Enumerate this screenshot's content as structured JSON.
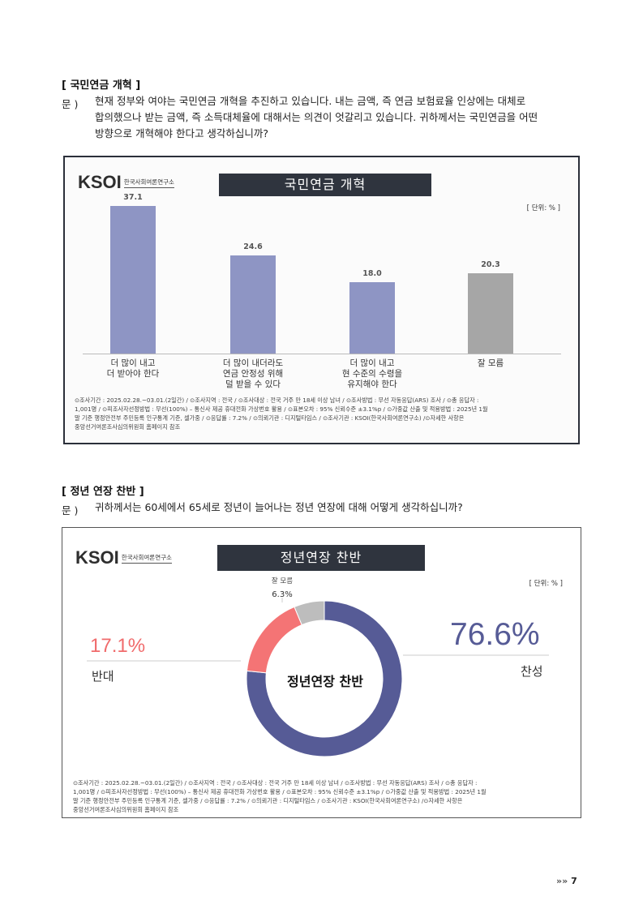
{
  "section1": {
    "title": "[ 국민연금 개혁 ]",
    "q_label": "문 )",
    "q_line1": "현재 정부와 여야는 국민연금 개혁을 추진하고 있습니다. 내는 금액, 즉 연금 보험료율 인상에는 대체로",
    "q_line2": "합의했으나 받는 금액, 즉 소득대체율에 대해서는 의견이 엇갈리고 있습니다. 귀하께서는 국민연금을 어떤",
    "q_line3": "방향으로 개혁해야 한다고 생각하십니까?"
  },
  "section2": {
    "title": "[ 정년 연장 찬반 ]",
    "q_label": "문 )",
    "q_line1": "귀하께서는 60세에서 65세로 정년이 늘어나는 정년 연장에 대해 어떻게 생각하십니까?"
  },
  "logo": {
    "mark": "KSOI",
    "sub": "한국사회여론연구소"
  },
  "chart_data": [
    {
      "type": "bar",
      "title": "국민연금 개혁",
      "unit": "[ 단위: % ]",
      "categories": [
        "더 많이 내고\n더 받아야 한다",
        "더 많이 내더라도\n연금 안정성 위해\n덜 받을 수 있다",
        "더 많이 내고\n현 수준의 수령을\n유지해야 한다",
        "잘 모름"
      ],
      "values": [
        37.1,
        24.6,
        18.0,
        20.3
      ],
      "value_labels": [
        "37.1",
        "24.6",
        "18.0",
        "20.3"
      ],
      "colors": [
        "#8e95c4",
        "#8e95c4",
        "#8e95c4",
        "#a6a6a6"
      ],
      "ylim": [
        0,
        40
      ]
    },
    {
      "type": "pie",
      "title": "정년연장 찬반",
      "unit": "[ 단위: % ]",
      "center_label": "정년연장 찬반",
      "slices": [
        {
          "label": "찬성",
          "value": 76.6,
          "value_label": "76.6%",
          "color": "#565b96"
        },
        {
          "label": "반대",
          "value": 17.1,
          "value_label": "17.1%",
          "color": "#f47475"
        },
        {
          "label": "잘 모름",
          "value": 6.3,
          "value_label": "6.3%",
          "color": "#bdbdbd"
        }
      ]
    }
  ],
  "footnote": {
    "line1": "⊙조사기간 : 2025.02.28.~03.01.(2일간) / ⊙조사지역 : 전국 / ⊙조사대상 : 전국 거주 만 18세 이상 남녀 / ⊙조사방법 : 무선 자동응답(ARS) 조사 / ⊙총 응답자 :",
    "line2": "1,001명 / ⊙피조사자선정방법 : 무선(100%) – 통신사 제공 휴대전화 가상번호 활용 / ⊙표본오차 : 95% 신뢰수준 ±3.1%p / ⊙가중값 산출 및 적용방법 : 2025년 1월",
    "line3": "말 기준 행정안전부 주민등록 인구통계 기준, 셀가중 / ⊙응답률 : 7.2% / ⊙의뢰기관 : 디지털타임스 / ⊙조사기관 : KSOI(한국사회여론연구소) /⊙자세한 사항은",
    "line4": "중앙선거여론조사심의위원회 홈페이지 참조"
  },
  "page": {
    "number": "7",
    "arrows": "»»"
  }
}
